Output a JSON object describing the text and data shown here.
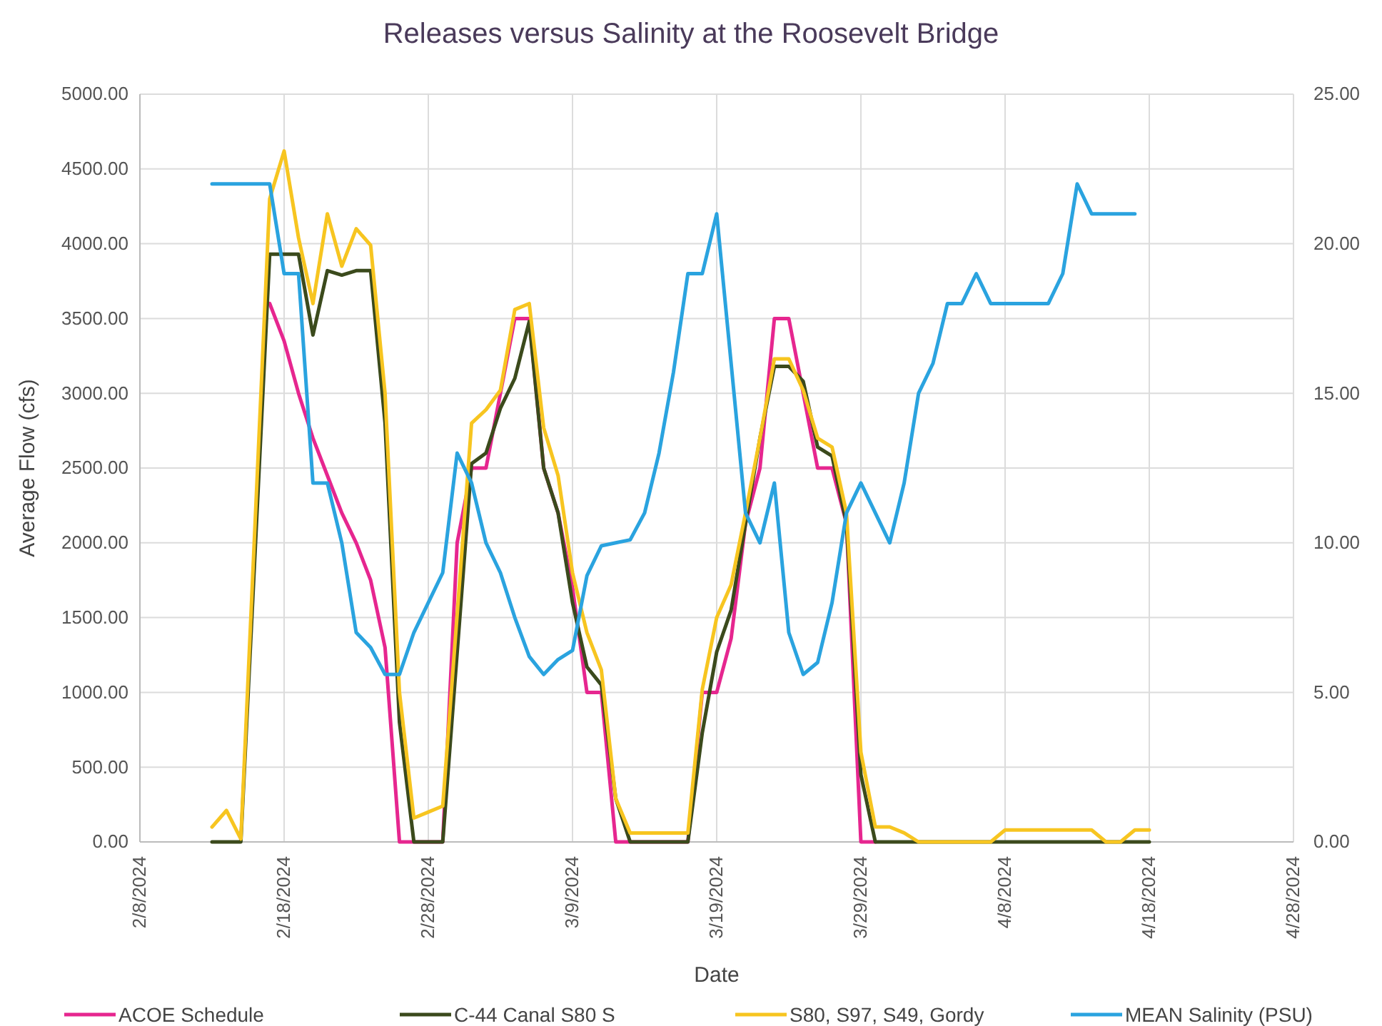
{
  "chart_data": {
    "type": "line",
    "title": "Releases versus Salinity at the Roosevelt Bridge",
    "xlabel": "Date",
    "ylabel": "Average Flow (cfs)",
    "xlim": [
      "2024-02-08",
      "2024-04-28"
    ],
    "xticks": [
      {
        "value": "2024-02-08",
        "label": "2/8/2024"
      },
      {
        "value": "2024-02-18",
        "label": "2/18/2024"
      },
      {
        "value": "2024-02-28",
        "label": "2/28/2024"
      },
      {
        "value": "2024-03-09",
        "label": "3/9/2024"
      },
      {
        "value": "2024-03-19",
        "label": "3/19/2024"
      },
      {
        "value": "2024-03-29",
        "label": "3/29/2024"
      },
      {
        "value": "2024-04-08",
        "label": "4/8/2024"
      },
      {
        "value": "2024-04-18",
        "label": "4/18/2024"
      },
      {
        "value": "2024-04-28",
        "label": "4/28/2024"
      }
    ],
    "ylim": [
      0,
      5000
    ],
    "yticks": [
      {
        "value": 0,
        "label": "0.00"
      },
      {
        "value": 500,
        "label": "500.00"
      },
      {
        "value": 1000,
        "label": "1000.00"
      },
      {
        "value": 1500,
        "label": "1500.00"
      },
      {
        "value": 2000,
        "label": "2000.00"
      },
      {
        "value": 2500,
        "label": "2500.00"
      },
      {
        "value": 3000,
        "label": "3000.00"
      },
      {
        "value": 3500,
        "label": "3500.00"
      },
      {
        "value": 4000,
        "label": "4000.00"
      },
      {
        "value": 4500,
        "label": "4500.00"
      },
      {
        "value": 5000,
        "label": "5000.00"
      }
    ],
    "y2lim": [
      0,
      25
    ],
    "y2ticks": [
      {
        "value": 0,
        "label": "0.00"
      },
      {
        "value": 5,
        "label": "5.00"
      },
      {
        "value": 10,
        "label": "10.00"
      },
      {
        "value": 15,
        "label": "15.00"
      },
      {
        "value": 20,
        "label": "20.00"
      },
      {
        "value": 25,
        "label": "25.00"
      }
    ],
    "grid": true,
    "legend": "bottom",
    "marker": "none",
    "line_style": "solid",
    "series": [
      {
        "name": "ACOE Schedule",
        "color": "#e6268f",
        "x": [
          "2024-02-17",
          "2024-02-18",
          "2024-02-19",
          "2024-02-20",
          "2024-02-21",
          "2024-02-22",
          "2024-02-23",
          "2024-02-24",
          "2024-02-25",
          "2024-02-26",
          "2024-02-27",
          "2024-02-28",
          "2024-02-29",
          "2024-03-01",
          "2024-03-02",
          "2024-03-03",
          "2024-03-04",
          "2024-03-05",
          "2024-03-06",
          "2024-03-07",
          "2024-03-08",
          "2024-03-09",
          "2024-03-10",
          "2024-03-11",
          "2024-03-12",
          "2024-03-13",
          "2024-03-14",
          "2024-03-15",
          "2024-03-16",
          "2024-03-17",
          "2024-03-18",
          "2024-03-19",
          "2024-03-20",
          "2024-03-21",
          "2024-03-22",
          "2024-03-23",
          "2024-03-24",
          "2024-03-25",
          "2024-03-26",
          "2024-03-27",
          "2024-03-28",
          "2024-03-29",
          "2024-03-30"
        ],
        "values": [
          3600,
          3350,
          3000,
          2700,
          2450,
          2200,
          2000,
          1750,
          1300,
          0,
          0,
          0,
          0,
          2000,
          2500,
          2500,
          3000,
          3500,
          3500,
          2500,
          2200,
          1700,
          1000,
          1000,
          0,
          0,
          0,
          0,
          0,
          0,
          1000,
          1000,
          1360,
          2130,
          2500,
          3500,
          3500,
          3000,
          2500,
          2500,
          2130,
          0,
          0
        ]
      },
      {
        "name": "C-44 Canal S80 S",
        "color": "#3b4a1c",
        "x": [
          "2024-02-13",
          "2024-02-15",
          "2024-02-17",
          "2024-02-19",
          "2024-02-20",
          "2024-02-21",
          "2024-02-22",
          "2024-02-23",
          "2024-02-24",
          "2024-02-25",
          "2024-02-26",
          "2024-02-27",
          "2024-02-28",
          "2024-02-29",
          "2024-03-02",
          "2024-03-03",
          "2024-03-04",
          "2024-03-05",
          "2024-03-06",
          "2024-03-07",
          "2024-03-08",
          "2024-03-09",
          "2024-03-10",
          "2024-03-11",
          "2024-03-12",
          "2024-03-13",
          "2024-03-17",
          "2024-03-18",
          "2024-03-19",
          "2024-03-20",
          "2024-03-21",
          "2024-03-22",
          "2024-03-23",
          "2024-03-24",
          "2024-03-25",
          "2024-03-26",
          "2024-03-27",
          "2024-03-28",
          "2024-03-29",
          "2024-03-30",
          "2024-04-18"
        ],
        "values": [
          0,
          0,
          3930,
          3930,
          3390,
          3820,
          3790,
          3820,
          3820,
          2800,
          800,
          0,
          0,
          0,
          2530,
          2600,
          2900,
          3100,
          3480,
          2500,
          2200,
          1600,
          1170,
          1050,
          290,
          0,
          0,
          730,
          1270,
          1550,
          2130,
          2700,
          3180,
          3180,
          3080,
          2640,
          2580,
          2130,
          450,
          0,
          0
        ]
      },
      {
        "name": "S80, S97, S49, Gordy",
        "color": "#f7c520",
        "x": [
          "2024-02-13",
          "2024-02-14",
          "2024-02-15",
          "2024-02-17",
          "2024-02-18",
          "2024-02-19",
          "2024-02-20",
          "2024-02-21",
          "2024-02-22",
          "2024-02-23",
          "2024-02-24",
          "2024-02-25",
          "2024-02-26",
          "2024-02-27",
          "2024-02-28",
          "2024-02-29",
          "2024-03-02",
          "2024-03-03",
          "2024-03-04",
          "2024-03-05",
          "2024-03-06",
          "2024-03-07",
          "2024-03-08",
          "2024-03-09",
          "2024-03-10",
          "2024-03-11",
          "2024-03-12",
          "2024-03-13",
          "2024-03-17",
          "2024-03-18",
          "2024-03-19",
          "2024-03-20",
          "2024-03-21",
          "2024-03-22",
          "2024-03-23",
          "2024-03-24",
          "2024-03-25",
          "2024-03-26",
          "2024-03-27",
          "2024-03-28",
          "2024-03-29",
          "2024-03-30",
          "2024-03-31",
          "2024-04-01",
          "2024-04-02",
          "2024-04-07",
          "2024-04-08",
          "2024-04-14",
          "2024-04-15",
          "2024-04-16",
          "2024-04-17",
          "2024-04-18"
        ],
        "values": [
          100,
          210,
          20,
          4300,
          4620,
          4040,
          3600,
          4200,
          3850,
          4100,
          3990,
          3000,
          1000,
          160,
          200,
          240,
          2800,
          2890,
          3020,
          3560,
          3600,
          2770,
          2450,
          1800,
          1400,
          1150,
          290,
          60,
          60,
          1020,
          1500,
          1720,
          2200,
          2700,
          3230,
          3230,
          3020,
          2700,
          2640,
          2200,
          600,
          100,
          100,
          60,
          0,
          0,
          80,
          80,
          0,
          0,
          80,
          80
        ]
      },
      {
        "name": "MEAN Salinity (PSU)",
        "color": "#2aa3df",
        "axis": "y2",
        "x": [
          "2024-02-13",
          "2024-02-17",
          "2024-02-18",
          "2024-02-19",
          "2024-02-20",
          "2024-02-21",
          "2024-02-22",
          "2024-02-23",
          "2024-02-24",
          "2024-02-25",
          "2024-02-26",
          "2024-02-27",
          "2024-02-28",
          "2024-02-29",
          "2024-03-01",
          "2024-03-02",
          "2024-03-03",
          "2024-03-04",
          "2024-03-05",
          "2024-03-06",
          "2024-03-07",
          "2024-03-08",
          "2024-03-09",
          "2024-03-10",
          "2024-03-11",
          "2024-03-12",
          "2024-03-13",
          "2024-03-14",
          "2024-03-15",
          "2024-03-16",
          "2024-03-17",
          "2024-03-18",
          "2024-03-19",
          "2024-03-20",
          "2024-03-21",
          "2024-03-22",
          "2024-03-23",
          "2024-03-24",
          "2024-03-25",
          "2024-03-26",
          "2024-03-27",
          "2024-03-28",
          "2024-03-29",
          "2024-03-30",
          "2024-03-31",
          "2024-04-01",
          "2024-04-02",
          "2024-04-03",
          "2024-04-04",
          "2024-04-05",
          "2024-04-06",
          "2024-04-07",
          "2024-04-11",
          "2024-04-12",
          "2024-04-13",
          "2024-04-14",
          "2024-04-17"
        ],
        "values": [
          22,
          22,
          19,
          19,
          12,
          12,
          10,
          7,
          6.5,
          5.6,
          5.6,
          7,
          8,
          9,
          13,
          12,
          10,
          9,
          7.5,
          6.2,
          5.6,
          6.1,
          6.4,
          8.9,
          9.9,
          10,
          10.1,
          11,
          13,
          15.7,
          19,
          19,
          21,
          16,
          11,
          10,
          12,
          7,
          5.6,
          6,
          8,
          11,
          12,
          11,
          10,
          12,
          15,
          16,
          18,
          18,
          19,
          18,
          18,
          19,
          22,
          21,
          21
        ]
      }
    ]
  }
}
